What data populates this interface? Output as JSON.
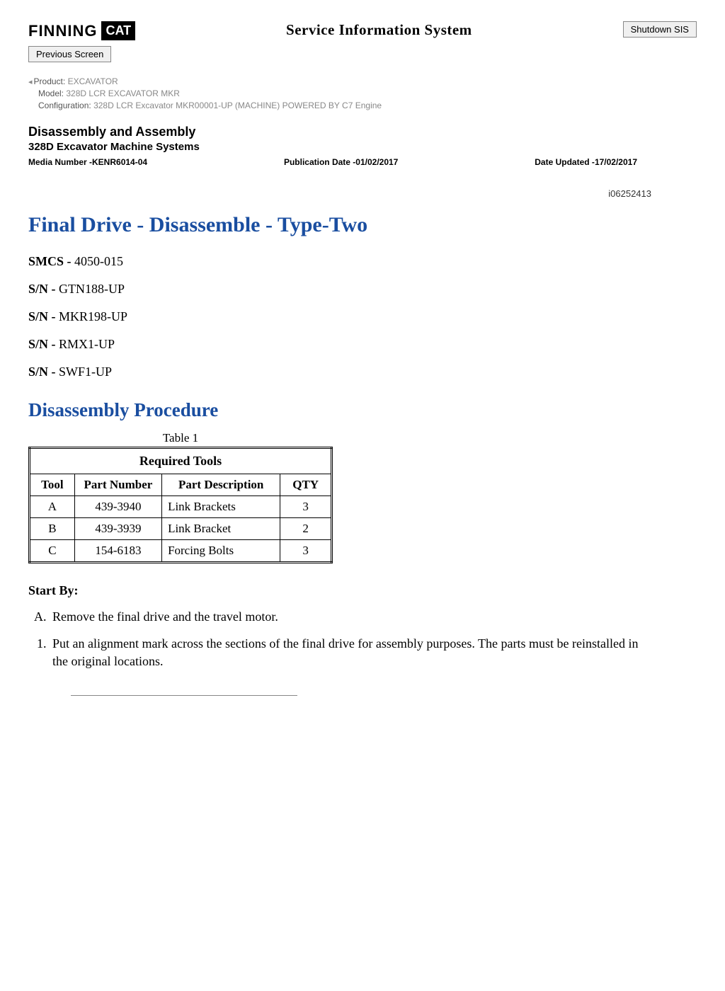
{
  "header": {
    "brand_text": "FINNING",
    "brand_badge": "CAT",
    "system_title": "Service Information System",
    "shutdown_btn": "Shutdown SIS",
    "previous_btn": "Previous Screen"
  },
  "meta": {
    "product_label": "Product:",
    "product_value": "EXCAVATOR",
    "model_label": "Model:",
    "model_value": "328D LCR EXCAVATOR MKR",
    "config_label": "Configuration:",
    "config_value": "328D LCR Excavator MKR00001-UP (MACHINE) POWERED BY C7 Engine"
  },
  "doc": {
    "section": "Disassembly and Assembly",
    "subsection": "328D Excavator Machine Systems",
    "media_label": "Media Number -",
    "media_value": "KENR6014-04",
    "pubdate_label": "Publication Date -",
    "pubdate_value": "01/02/2017",
    "updated_label": "Date Updated -",
    "updated_value": "17/02/2017",
    "refno": "i06252413"
  },
  "article": {
    "title": "Final Drive - Disassemble - Type-Two",
    "smcs_label": "SMCS - ",
    "smcs_value": "4050-015",
    "sn_label": "S/N - ",
    "sns": [
      "GTN188-UP",
      "MKR198-UP",
      "RMX1-UP",
      "SWF1-UP"
    ],
    "procedure_title": "Disassembly Procedure"
  },
  "table": {
    "caption": "Table 1",
    "title": "Required Tools",
    "columns": [
      "Tool",
      "Part Number",
      "Part Description",
      "QTY"
    ],
    "rows": [
      [
        "A",
        "439-3940",
        "Link Brackets",
        "3"
      ],
      [
        "B",
        "439-3939",
        "Link Bracket",
        "2"
      ],
      [
        "C",
        "154-6183",
        "Forcing Bolts",
        "3"
      ]
    ],
    "col_widths": [
      "50px",
      "120px",
      "170px",
      "60px"
    ]
  },
  "body": {
    "startby_label": "Start By:",
    "alpha_steps": [
      "Remove the final drive and the travel motor."
    ],
    "num_steps": [
      "Put an alignment mark across the sections of the final drive for assembly purposes. The parts must be reinstalled in the original locations."
    ]
  },
  "colors": {
    "link_blue": "#1a4ea0",
    "meta_grey": "#888888"
  }
}
